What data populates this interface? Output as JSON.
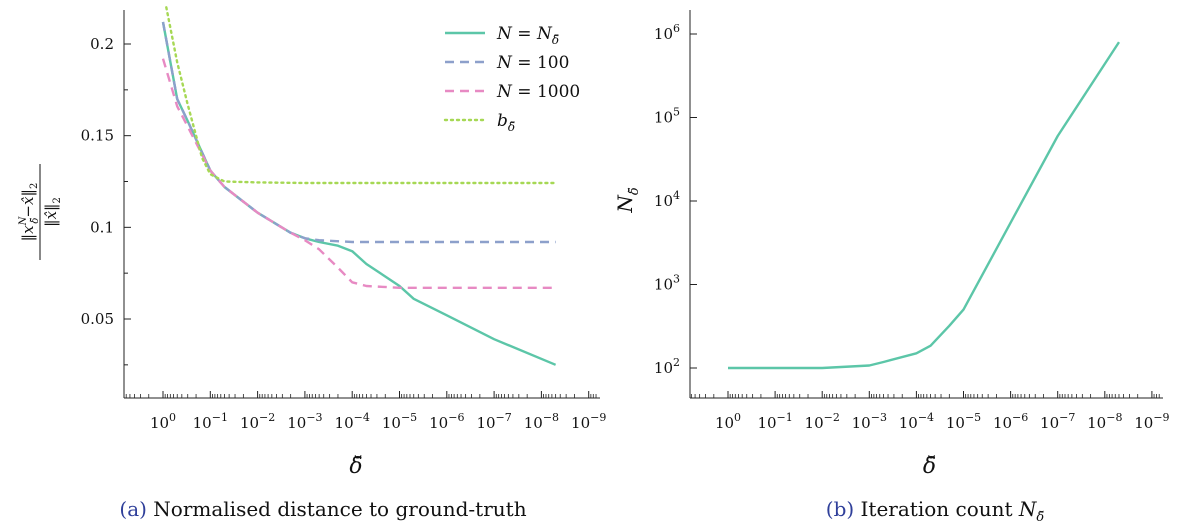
{
  "chart_data": [
    {
      "type": "line",
      "caption_label": "(a)",
      "caption_text": "Normalised distance to ground-truth",
      "x_scale": "log (reversed, decreasing δ̆)",
      "xlabel": "δ̆",
      "ylabel": "‖x^N_δ̆ − x̂‖₂ / ‖x̂‖₂",
      "xticks": [
        "10^0",
        "10^-1",
        "10^-2",
        "10^-3",
        "10^-4",
        "10^-5",
        "10^-6",
        "10^-7",
        "10^-8",
        "10^-9"
      ],
      "yticks": [
        "0.05",
        "0.1",
        "0.15",
        "0.2"
      ],
      "ylim": [
        0.02,
        0.22
      ],
      "legend_position": "top-right",
      "series": [
        {
          "name": "N = N_δ̆",
          "color": "#5cc6a8",
          "style": "solid",
          "x": [
            1,
            0.5,
            0.3,
            0.1,
            0.05,
            0.01,
            0.002,
            0.001,
            0.0005,
            0.0002,
            0.0001,
            5e-05,
            1e-05,
            5e-06,
            1e-06,
            1e-07,
            5e-09
          ],
          "y": [
            0.212,
            0.17,
            0.158,
            0.131,
            0.122,
            0.108,
            0.097,
            0.094,
            0.092,
            0.09,
            0.087,
            0.08,
            0.068,
            0.061,
            0.052,
            0.039,
            0.025
          ]
        },
        {
          "name": "N = 100",
          "color": "#8da0cb",
          "style": "dashed",
          "x": [
            1,
            0.5,
            0.3,
            0.1,
            0.05,
            0.01,
            0.002,
            0.001,
            0.0005,
            0.0001,
            1e-05,
            1e-06,
            1e-07,
            5e-09
          ],
          "y": [
            0.212,
            0.17,
            0.158,
            0.131,
            0.122,
            0.108,
            0.097,
            0.094,
            0.093,
            0.092,
            0.092,
            0.092,
            0.092,
            0.092
          ]
        },
        {
          "name": "N = 1000",
          "color": "#e78ac3",
          "style": "dashed",
          "x": [
            1,
            0.5,
            0.3,
            0.1,
            0.05,
            0.01,
            0.002,
            0.001,
            0.0005,
            0.0002,
            0.0001,
            5e-05,
            1e-05,
            1e-06,
            1e-07,
            5e-09
          ],
          "y": [
            0.192,
            0.166,
            0.155,
            0.131,
            0.122,
            0.108,
            0.097,
            0.093,
            0.088,
            0.078,
            0.07,
            0.068,
            0.067,
            0.067,
            0.067,
            0.067
          ]
        },
        {
          "name": "b_δ̆",
          "color": "#a6d854",
          "style": "dotted",
          "x": [
            0.85,
            0.5,
            0.3,
            0.15,
            0.1,
            0.05,
            0.01,
            0.001,
            0.0001,
            1e-05,
            1e-06,
            1e-07,
            5e-09
          ],
          "y": [
            0.22,
            0.19,
            0.167,
            0.138,
            0.129,
            0.125,
            0.1245,
            0.1242,
            0.1242,
            0.1242,
            0.1242,
            0.1242,
            0.1242
          ]
        }
      ],
      "legend": [
        {
          "label": "N = N_δ̆",
          "color": "#5cc6a8",
          "style": "solid"
        },
        {
          "label": "N = 100",
          "color": "#8da0cb",
          "style": "dashed"
        },
        {
          "label": "N = 1000",
          "color": "#e78ac3",
          "style": "dashed"
        },
        {
          "label": "b_δ̆",
          "color": "#a6d854",
          "style": "dotted"
        }
      ]
    },
    {
      "type": "line",
      "caption_label": "(b)",
      "caption_text": "Iteration count N_δ̆",
      "x_scale": "log (reversed, decreasing δ̆)",
      "y_scale": "log",
      "xlabel": "δ̆",
      "ylabel": "N_δ̆",
      "xticks": [
        "10^0",
        "10^-1",
        "10^-2",
        "10^-3",
        "10^-4",
        "10^-5",
        "10^-6",
        "10^-7",
        "10^-8",
        "10^-9"
      ],
      "yticks": [
        "10^2",
        "10^3",
        "10^4",
        "10^5",
        "10^6"
      ],
      "ylim": [
        60,
        2500000
      ],
      "series": [
        {
          "name": "N_δ̆",
          "color": "#5cc6a8",
          "style": "solid",
          "x": [
            1,
            0.1,
            0.01,
            0.001,
            0.0005,
            0.0001,
            5e-05,
            2e-05,
            1e-05,
            1e-06,
            1e-07,
            5e-09
          ],
          "y": [
            100,
            100,
            100,
            107,
            118,
            150,
            185,
            320,
            500,
            5500,
            60000,
            800000
          ]
        }
      ]
    }
  ]
}
